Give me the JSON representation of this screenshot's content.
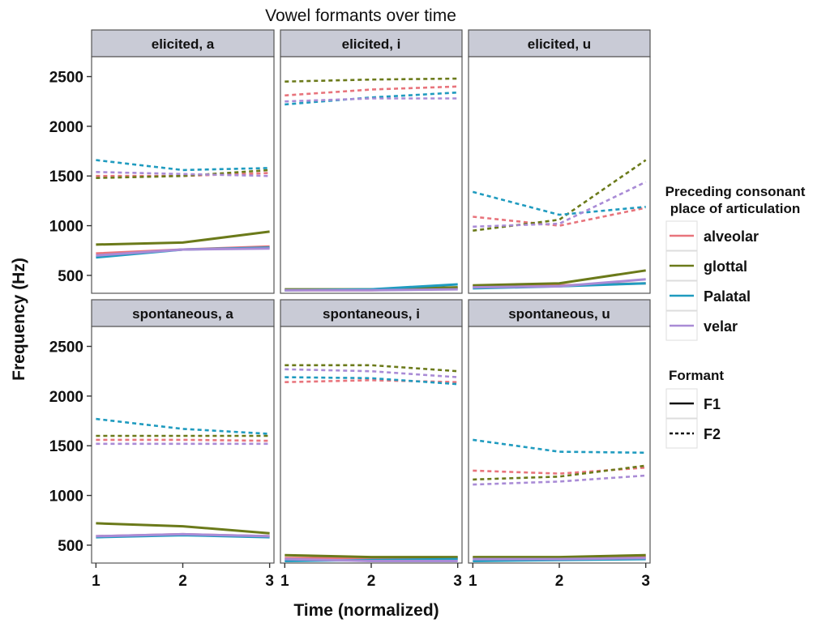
{
  "chart_data": {
    "type": "line",
    "title": "Vowel formants over time",
    "xlabel": "Time (normalized)",
    "ylabel": "Frequency (Hz)",
    "x": [
      1,
      2,
      3
    ],
    "xlim": [
      0.95,
      3.05
    ],
    "ylim": [
      320,
      2700
    ],
    "xticks": [
      1,
      2,
      3
    ],
    "yticks": [
      500,
      1000,
      1500,
      2000,
      2500
    ],
    "grid": false,
    "legend_placement": "right",
    "color_legend": {
      "title_line1": "Preceding consonant",
      "title_line2": "place of articulation",
      "entries": [
        {
          "label": "alveolar",
          "color": "#e8747c"
        },
        {
          "label": "glottal",
          "color": "#6b7a1a"
        },
        {
          "label": "Palatal",
          "color": "#1f9bbf"
        },
        {
          "label": "velar",
          "color": "#a98bd6"
        }
      ]
    },
    "linetype_legend": {
      "title": "Formant",
      "entries": [
        {
          "label": "F1",
          "dash": "solid"
        },
        {
          "label": "F2",
          "dash": "dashed"
        }
      ]
    },
    "panels": [
      {
        "label": "elicited, a",
        "series": [
          {
            "place": "alveolar",
            "formant": "F1",
            "values": [
              720,
              760,
              790
            ]
          },
          {
            "place": "glottal",
            "formant": "F1",
            "values": [
              810,
              830,
              940
            ]
          },
          {
            "place": "Palatal",
            "formant": "F1",
            "values": [
              680,
              760,
              780
            ]
          },
          {
            "place": "velar",
            "formant": "F1",
            "values": [
              700,
              760,
              770
            ]
          },
          {
            "place": "alveolar",
            "formant": "F2",
            "values": [
              1500,
              1500,
              1530
            ]
          },
          {
            "place": "glottal",
            "formant": "F2",
            "values": [
              1480,
              1500,
              1560
            ]
          },
          {
            "place": "Palatal",
            "formant": "F2",
            "values": [
              1660,
              1560,
              1580
            ]
          },
          {
            "place": "velar",
            "formant": "F2",
            "values": [
              1540,
              1520,
              1500
            ]
          }
        ]
      },
      {
        "label": "elicited, i",
        "series": [
          {
            "place": "alveolar",
            "formant": "F1",
            "values": [
              350,
              350,
              370
            ]
          },
          {
            "place": "glottal",
            "formant": "F1",
            "values": [
              360,
              360,
              380
            ]
          },
          {
            "place": "Palatal",
            "formant": "F1",
            "values": [
              350,
              360,
              410
            ]
          },
          {
            "place": "velar",
            "formant": "F1",
            "values": [
              350,
              350,
              360
            ]
          },
          {
            "place": "alveolar",
            "formant": "F2",
            "values": [
              2310,
              2370,
              2400
            ]
          },
          {
            "place": "glottal",
            "formant": "F2",
            "values": [
              2450,
              2470,
              2480
            ]
          },
          {
            "place": "Palatal",
            "formant": "F2",
            "values": [
              2220,
              2290,
              2340
            ]
          },
          {
            "place": "velar",
            "formant": "F2",
            "values": [
              2250,
              2280,
              2280
            ]
          }
        ]
      },
      {
        "label": "elicited, u",
        "series": [
          {
            "place": "alveolar",
            "formant": "F1",
            "values": [
              390,
              400,
              420
            ]
          },
          {
            "place": "glottal",
            "formant": "F1",
            "values": [
              400,
              420,
              550
            ]
          },
          {
            "place": "Palatal",
            "formant": "F1",
            "values": [
              370,
              390,
              420
            ]
          },
          {
            "place": "velar",
            "formant": "F1",
            "values": [
              380,
              390,
              460
            ]
          },
          {
            "place": "alveolar",
            "formant": "F2",
            "values": [
              1090,
              1000,
              1180
            ]
          },
          {
            "place": "glottal",
            "formant": "F2",
            "values": [
              950,
              1060,
              1660
            ]
          },
          {
            "place": "Palatal",
            "formant": "F2",
            "values": [
              1340,
              1110,
              1190
            ]
          },
          {
            "place": "velar",
            "formant": "F2",
            "values": [
              990,
              1020,
              1440
            ]
          }
        ]
      },
      {
        "label": "spontaneous, a",
        "series": [
          {
            "place": "alveolar",
            "formant": "F1",
            "values": [
              590,
              610,
              590
            ]
          },
          {
            "place": "glottal",
            "formant": "F1",
            "values": [
              720,
              690,
              620
            ]
          },
          {
            "place": "Palatal",
            "formant": "F1",
            "values": [
              580,
              600,
              580
            ]
          },
          {
            "place": "velar",
            "formant": "F1",
            "values": [
              590,
              610,
              590
            ]
          },
          {
            "place": "alveolar",
            "formant": "F2",
            "values": [
              1560,
              1560,
              1550
            ]
          },
          {
            "place": "glottal",
            "formant": "F2",
            "values": [
              1600,
              1600,
              1600
            ]
          },
          {
            "place": "Palatal",
            "formant": "F2",
            "values": [
              1770,
              1670,
              1620
            ]
          },
          {
            "place": "velar",
            "formant": "F2",
            "values": [
              1520,
              1520,
              1520
            ]
          }
        ]
      },
      {
        "label": "spontaneous, i",
        "series": [
          {
            "place": "alveolar",
            "formant": "F1",
            "values": [
              370,
              370,
              370
            ]
          },
          {
            "place": "glottal",
            "formant": "F1",
            "values": [
              400,
              380,
              380
            ]
          },
          {
            "place": "Palatal",
            "formant": "F1",
            "values": [
              340,
              350,
              360
            ]
          },
          {
            "place": "velar",
            "formant": "F1",
            "values": [
              360,
              340,
              340
            ]
          },
          {
            "place": "alveolar",
            "formant": "F2",
            "values": [
              2140,
              2160,
              2140
            ]
          },
          {
            "place": "glottal",
            "formant": "F2",
            "values": [
              2310,
              2310,
              2250
            ]
          },
          {
            "place": "Palatal",
            "formant": "F2",
            "values": [
              2190,
              2180,
              2120
            ]
          },
          {
            "place": "velar",
            "formant": "F2",
            "values": [
              2270,
              2250,
              2190
            ]
          }
        ]
      },
      {
        "label": "spontaneous, u",
        "series": [
          {
            "place": "alveolar",
            "formant": "F1",
            "values": [
              370,
              370,
              380
            ]
          },
          {
            "place": "glottal",
            "formant": "F1",
            "values": [
              380,
              380,
              400
            ]
          },
          {
            "place": "Palatal",
            "formant": "F1",
            "values": [
              340,
              350,
              360
            ]
          },
          {
            "place": "velar",
            "formant": "F1",
            "values": [
              360,
              360,
              370
            ]
          },
          {
            "place": "alveolar",
            "formant": "F2",
            "values": [
              1250,
              1220,
              1280
            ]
          },
          {
            "place": "glottal",
            "formant": "F2",
            "values": [
              1160,
              1190,
              1300
            ]
          },
          {
            "place": "Palatal",
            "formant": "F2",
            "values": [
              1560,
              1440,
              1430
            ]
          },
          {
            "place": "velar",
            "formant": "F2",
            "values": [
              1110,
              1140,
              1200
            ]
          }
        ]
      }
    ]
  }
}
